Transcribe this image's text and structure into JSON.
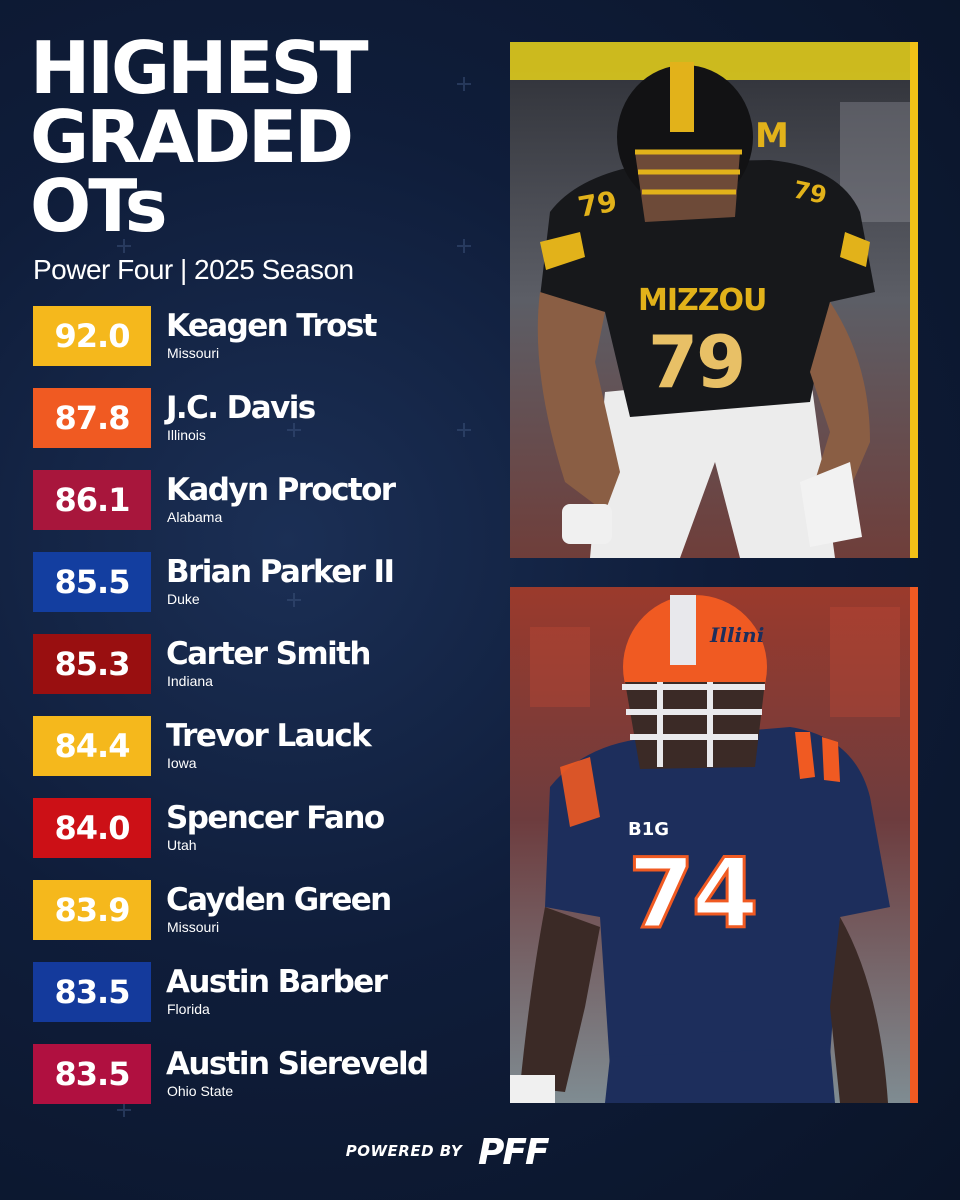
{
  "header": {
    "title_lines": [
      "HIGHEST",
      "GRADED",
      "OTs"
    ],
    "subtitle": "Power Four | 2025 Season"
  },
  "players": [
    {
      "grade": "92.0",
      "name": "Keagen Trost",
      "school": "Missouri",
      "color": "#f5b81c"
    },
    {
      "grade": "87.8",
      "name": "J.C. Davis",
      "school": "Illinois",
      "color": "#f05a22"
    },
    {
      "grade": "86.1",
      "name": "Kadyn Proctor",
      "school": "Alabama",
      "color": "#a8163c"
    },
    {
      "grade": "85.5",
      "name": "Brian Parker II",
      "school": "Duke",
      "color": "#133ea0"
    },
    {
      "grade": "85.3",
      "name": "Carter Smith",
      "school": "Indiana",
      "color": "#990f10"
    },
    {
      "grade": "84.4",
      "name": "Trevor Lauck",
      "school": "Iowa",
      "color": "#f5b81c"
    },
    {
      "grade": "84.0",
      "name": "Spencer Fano",
      "school": "Utah",
      "color": "#cc1016"
    },
    {
      "grade": "83.9",
      "name": "Cayden Green",
      "school": "Missouri",
      "color": "#f5b81c"
    },
    {
      "grade": "83.5",
      "name": "Austin Barber",
      "school": "Florida",
      "color": "#143a9c"
    },
    {
      "grade": "83.5",
      "name": "Austin Siereveld",
      "school": "Ohio State",
      "color": "#b01040"
    }
  ],
  "photos": [
    {
      "icon": "missouri-lineman-photo",
      "jersey_text": "MIZZOU",
      "jersey_number": "79",
      "helmet_text": "M",
      "accent": "#f2c117"
    },
    {
      "icon": "illinois-lineman-photo",
      "jersey_text": "B1G",
      "jersey_number": "74",
      "helmet_text": "Illini",
      "accent": "#f05a22"
    }
  ],
  "footer": {
    "powered_by": "POWERED BY",
    "brand": "PFF"
  }
}
